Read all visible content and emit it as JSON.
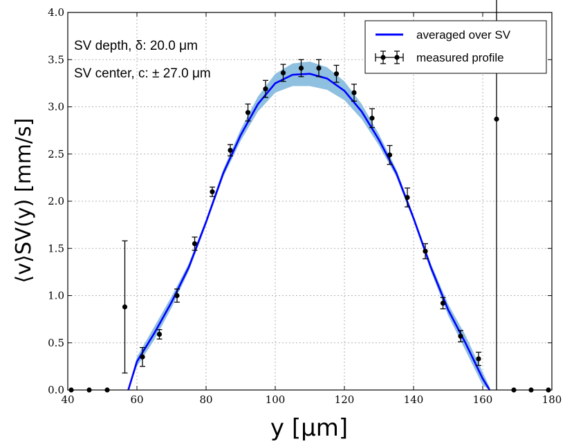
{
  "chart_data": {
    "type": "line",
    "xlabel": "y [μm]",
    "ylabel": "⟨v⟩SV(y) [mm/s]",
    "xlim": [
      40,
      180
    ],
    "ylim": [
      0.0,
      4.0
    ],
    "xticks": [
      "40",
      "60",
      "80",
      "100",
      "120",
      "140",
      "160",
      "180"
    ],
    "yticks": [
      "0.0",
      "0.5",
      "1.0",
      "1.5",
      "2.0",
      "2.5",
      "3.0",
      "3.5",
      "4.0"
    ],
    "grid": true,
    "legend_position": "top-right",
    "annotations": [
      "SV depth, δ: 20.0 μm",
      "SV center, c: ± 27.0 μm"
    ],
    "series": [
      {
        "name": "averaged over SV",
        "type": "line",
        "color": "#0000ff",
        "band_color": "#8fc0e0",
        "x": [
          57.5,
          60,
          65,
          70,
          75,
          80,
          85,
          90,
          95,
          100,
          105,
          110,
          115,
          120,
          125,
          130,
          135,
          140,
          145,
          150,
          155,
          160,
          162
        ],
        "y": [
          0.0,
          0.3,
          0.6,
          0.93,
          1.3,
          1.78,
          2.3,
          2.7,
          3.03,
          3.25,
          3.34,
          3.35,
          3.3,
          3.17,
          2.95,
          2.65,
          2.3,
          1.82,
          1.3,
          0.85,
          0.5,
          0.12,
          0.0
        ],
        "band_halfwidth": [
          0.02,
          0.05,
          0.07,
          0.06,
          0.04,
          0.03,
          0.04,
          0.06,
          0.08,
          0.1,
          0.12,
          0.13,
          0.12,
          0.1,
          0.08,
          0.06,
          0.04,
          0.03,
          0.04,
          0.06,
          0.08,
          0.07,
          0.03
        ]
      },
      {
        "name": "measured profile",
        "type": "errorbar",
        "color": "#000000",
        "x": [
          41,
          46.2,
          51.4,
          56.5,
          61.6,
          66.5,
          71.6,
          76.7,
          81.8,
          87,
          92.1,
          97.2,
          102.3,
          107.5,
          112.6,
          117.7,
          122.8,
          128,
          133.1,
          138.2,
          143.4,
          148.5,
          153.6,
          158.8,
          164,
          169,
          174,
          179
        ],
        "y": [
          0.0,
          0.0,
          0.0,
          0.88,
          0.35,
          0.59,
          1.0,
          1.55,
          2.1,
          2.54,
          2.94,
          3.19,
          3.36,
          3.41,
          3.41,
          3.35,
          3.15,
          2.88,
          2.49,
          2.04,
          1.47,
          0.92,
          0.57,
          0.33,
          2.87,
          0.0,
          0.0,
          0.0
        ],
        "yerr": [
          0.0,
          0.0,
          0.0,
          0.7,
          0.1,
          0.05,
          0.07,
          0.07,
          0.05,
          0.06,
          0.09,
          0.09,
          0.09,
          0.09,
          0.09,
          0.09,
          0.09,
          0.1,
          0.1,
          0.1,
          0.08,
          0.06,
          0.06,
          0.07,
          2.87,
          0.0,
          0.0,
          0.0
        ]
      }
    ]
  }
}
